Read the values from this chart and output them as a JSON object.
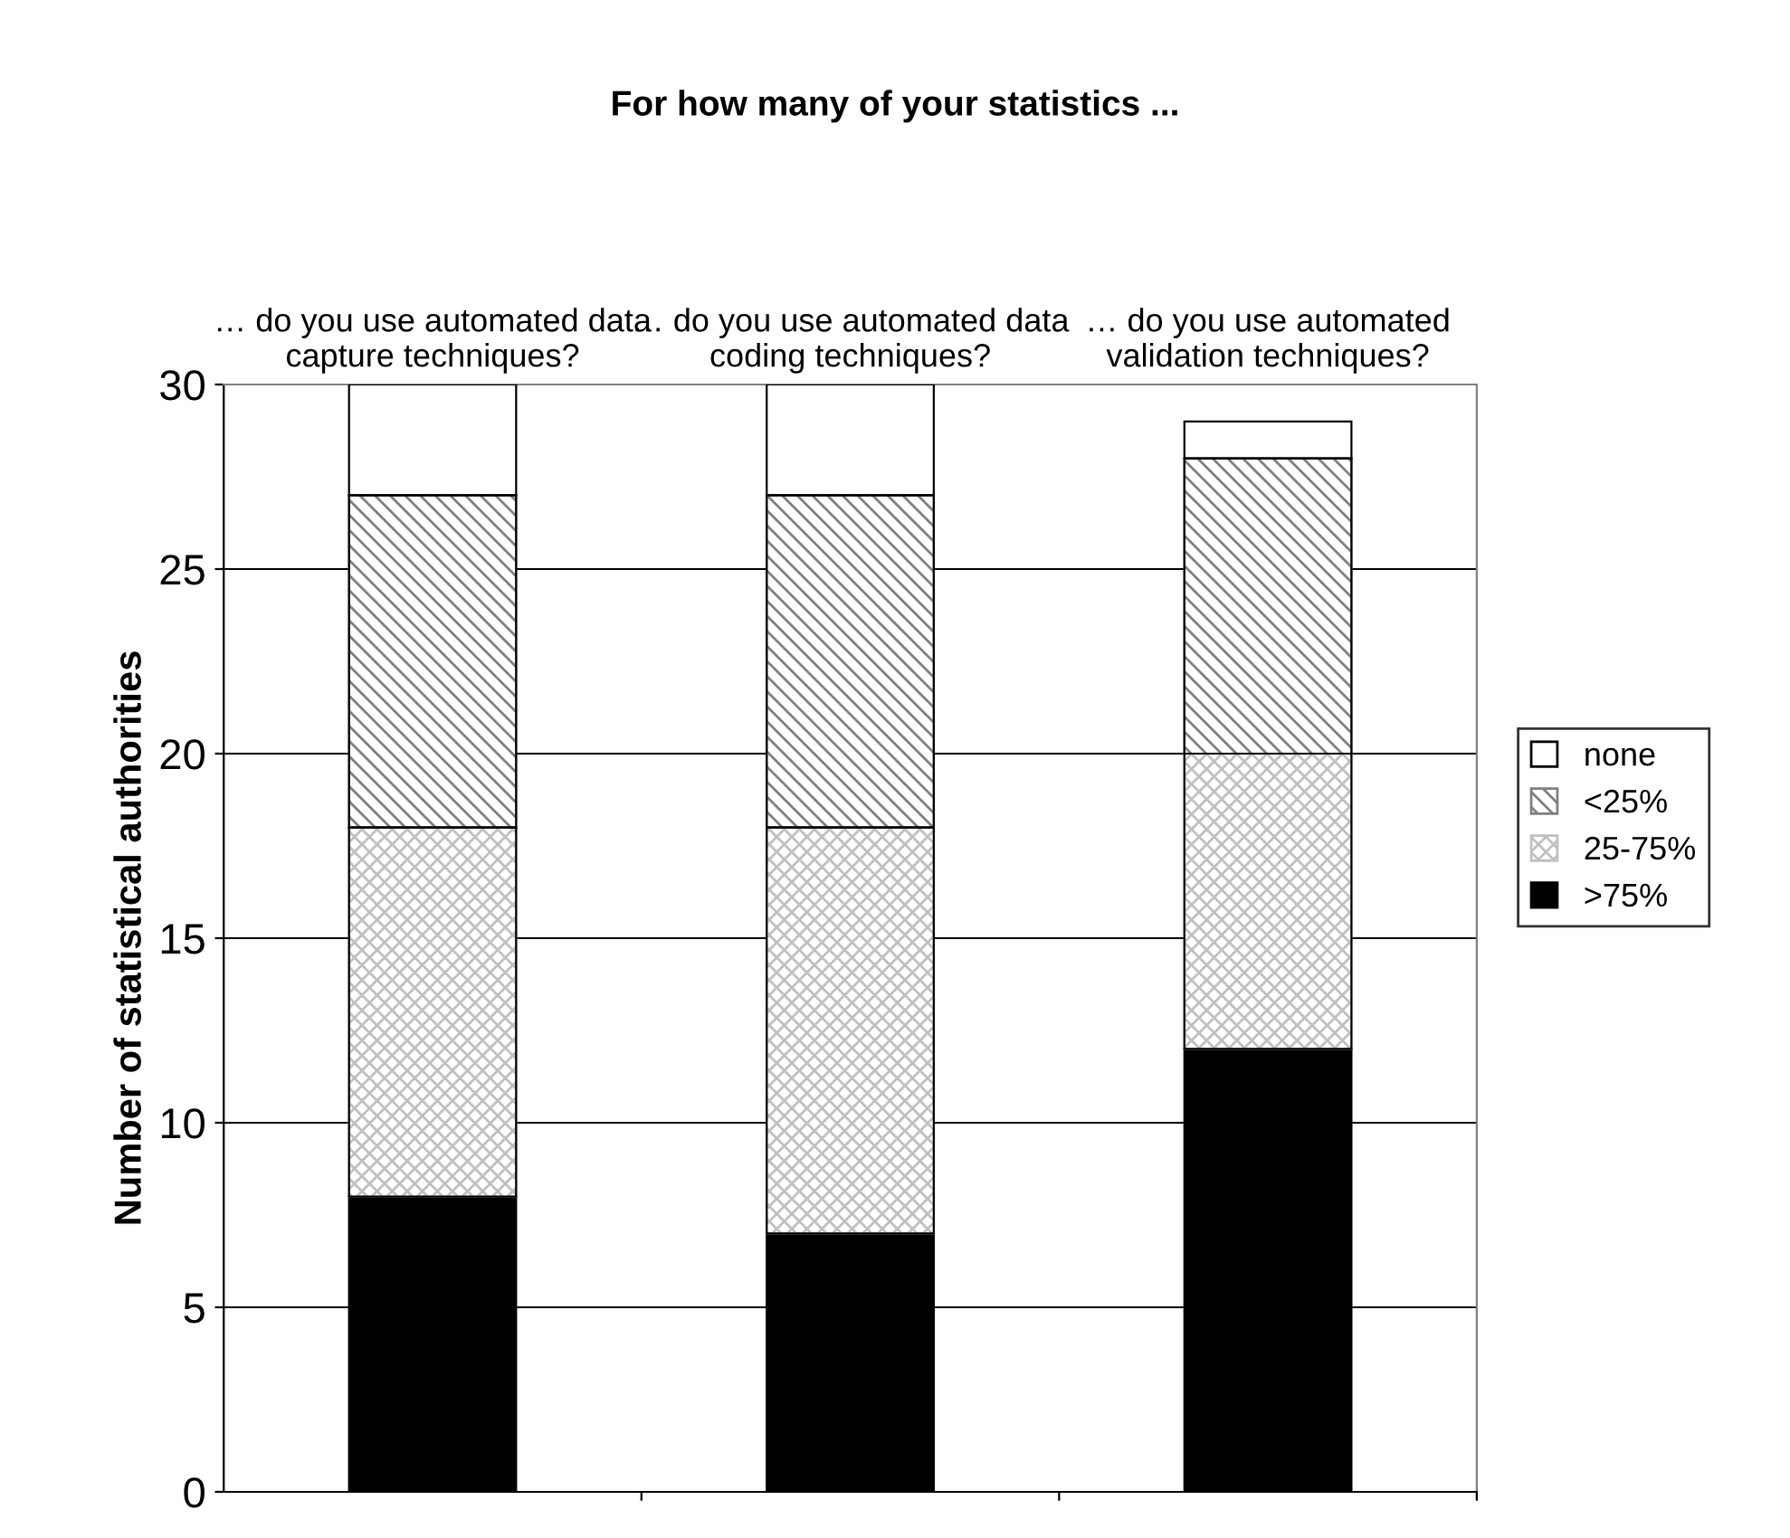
{
  "chart_data": {
    "type": "bar",
    "title": "For how many of your statistics ...",
    "ylabel": "Number of statistical authorities",
    "categories": [
      "… do you use automated data capture techniques?",
      "… do you use automated data coding techniques?",
      "… do you use automated validation techniques?"
    ],
    "stacked": true,
    "series": [
      {
        "name": ">75%",
        "color": "#000000",
        "values": [
          8,
          7,
          12
        ]
      },
      {
        "name": "25-75%",
        "color": "#c0c0c0",
        "values": [
          10,
          11,
          8
        ]
      },
      {
        "name": "<25%",
        "color": "#808080",
        "values": [
          9,
          9,
          8
        ]
      },
      {
        "name": "none",
        "color": "#ffffff",
        "values": [
          3,
          3,
          1
        ]
      }
    ],
    "ylim": [
      0,
      30
    ],
    "yticks": [
      0,
      5,
      10,
      15,
      20,
      25,
      30
    ],
    "grid": "y",
    "legend": "right"
  }
}
